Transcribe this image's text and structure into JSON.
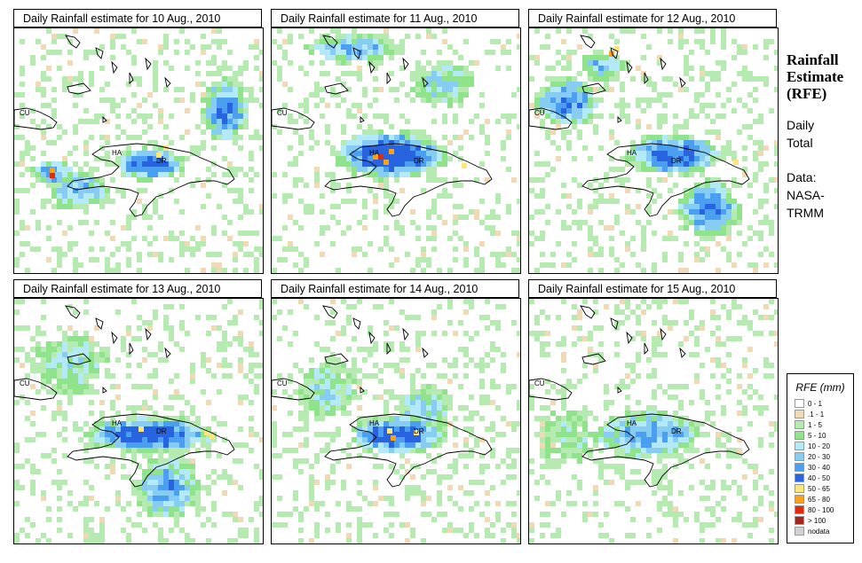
{
  "panels": [
    {
      "title": "Daily Rainfall estimate for  10 Aug., 2010"
    },
    {
      "title": "Daily Rainfall estimate for  11 Aug., 2010"
    },
    {
      "title": "Daily Rainfall estimate for  12 Aug., 2010"
    },
    {
      "title": "Daily Rainfall estimate for  13 Aug., 2010"
    },
    {
      "title": "Daily Rainfall estimate for  14 Aug., 2010"
    },
    {
      "title": "Daily Rainfall estimate for  15 Aug., 2010"
    }
  ],
  "map_labels": {
    "cuba": "CU",
    "haiti": "HA",
    "dominican_republic": "DR"
  },
  "side": {
    "title_line1": "Rainfall",
    "title_line2": "Estimate",
    "title_line3": "(RFE)",
    "period_line1": "Daily",
    "period_line2": "Total",
    "source_line1": "Data:",
    "source_line2": "NASA-",
    "source_line3": "TRMM"
  },
  "legend": {
    "title": "RFE (mm)",
    "items": [
      {
        "label": "0 - 1",
        "color": "#ffffff"
      },
      {
        "label": ".1 - 1",
        "color": "#f0d9b5"
      },
      {
        "label": "1 - 5",
        "color": "#b5ebb0"
      },
      {
        "label": "5 - 10",
        "color": "#8fe38a"
      },
      {
        "label": "10 - 20",
        "color": "#b4eaf8"
      },
      {
        "label": "20 - 30",
        "color": "#87ccf2"
      },
      {
        "label": "30 - 40",
        "color": "#4a9ff0"
      },
      {
        "label": "40 - 50",
        "color": "#2864e0"
      },
      {
        "label": "50 - 65",
        "color": "#fde67a"
      },
      {
        "label": "65 - 80",
        "color": "#f8a21c"
      },
      {
        "label": "80 - 100",
        "color": "#e02a10"
      },
      {
        "label": "> 100",
        "color": "#a0281e"
      },
      {
        "label": "nodata",
        "color": "#d2d2d2"
      }
    ]
  }
}
